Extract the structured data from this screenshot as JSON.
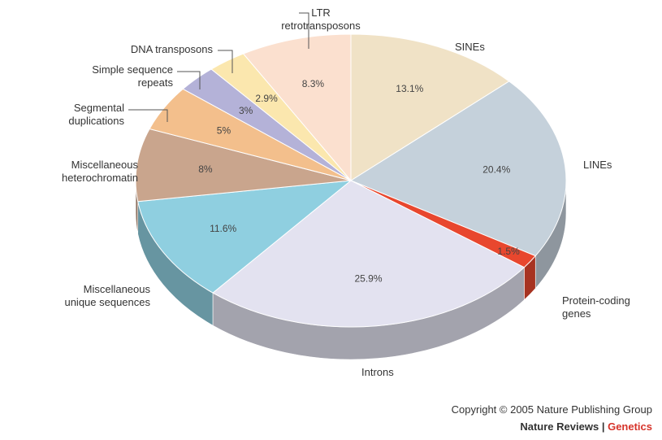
{
  "chart_data": {
    "type": "pie",
    "categories": [
      "SINEs",
      "LINEs",
      "Protein-coding\ngenes",
      "Introns",
      "Miscellaneous\nunique sequences",
      "Miscellaneous\nheterochromatin",
      "Segmental\nduplications",
      "Simple sequence\nrepeats",
      "DNA transposons",
      "LTR\nretrotransposons"
    ],
    "values": [
      13.1,
      20.4,
      1.5,
      25.9,
      11.6,
      8,
      5,
      3,
      2.9,
      8.3
    ],
    "value_labels": [
      "13.1%",
      "20.4%",
      "1.5%",
      "25.9%",
      "11.6%",
      "8%",
      "5%",
      "3%",
      "2.9%",
      "8.3%"
    ],
    "colors": [
      "#f0e2c6",
      "#c5d1db",
      "#e8472e",
      "#e3e2f0",
      "#8fcfe0",
      "#c9a58d",
      "#f3bf8c",
      "#b4b2d8",
      "#fbe7ae",
      "#fbe0cf"
    ]
  },
  "footer": {
    "copyright": "Copyright © 2005 Nature Publishing Group",
    "journal": "Nature Reviews",
    "separator": "|",
    "section": "Genetics"
  }
}
